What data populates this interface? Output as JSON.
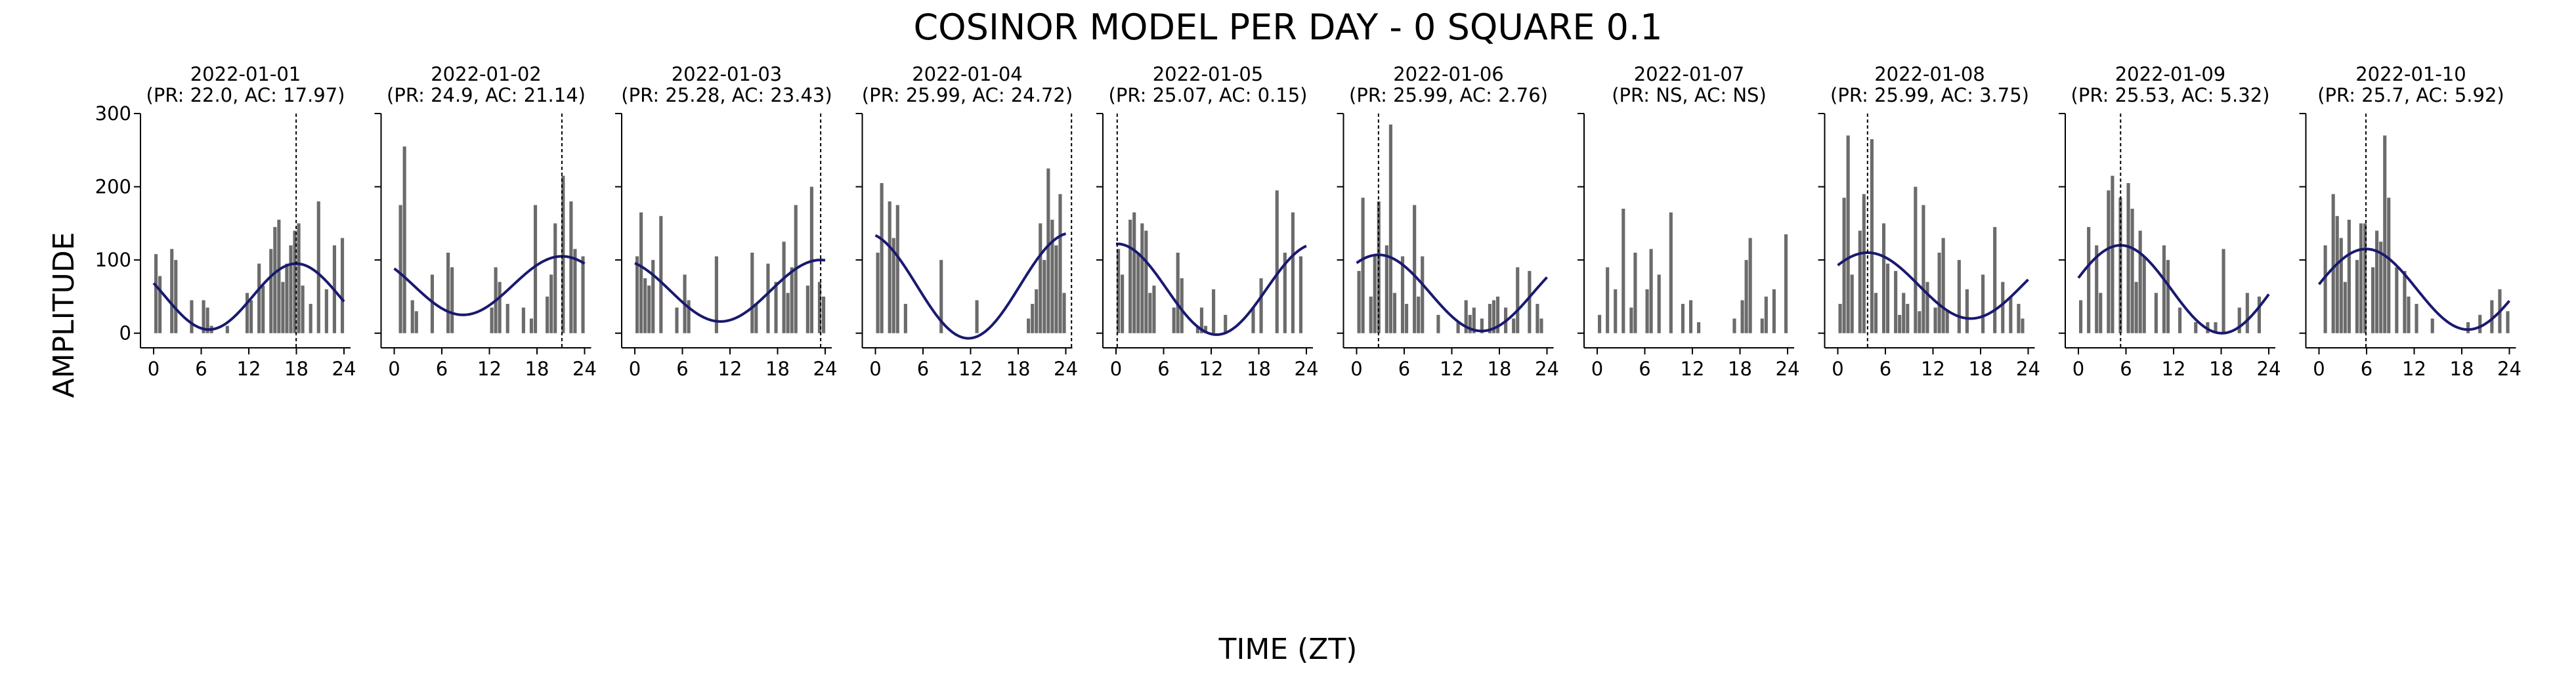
{
  "figure": {
    "title": "COSINOR MODEL PER DAY - 0 SQUARE 0.1",
    "xlabel": "TIME (ZT)",
    "ylabel": "AMPLITUDE"
  },
  "colors": {
    "bar": "#6b6b6b",
    "fit": "#191970",
    "axis": "#000000"
  },
  "chart_data": [
    {
      "type": "bar",
      "title": "2022-01-01\n(PR: 22.0, AC: 17.97)",
      "x": [
        0,
        0.5,
        1,
        1.5,
        2,
        2.5,
        3,
        3.5,
        4,
        4.5,
        5,
        5.5,
        6,
        6.5,
        7,
        7.5,
        8,
        8.5,
        9,
        9.5,
        10,
        10.5,
        11,
        11.5,
        12,
        12.5,
        13,
        13.5,
        14,
        14.5,
        15,
        15.5,
        16,
        16.5,
        17,
        17.5,
        18,
        18.5,
        19,
        19.5,
        20,
        20.5,
        21,
        21.5,
        22,
        22.5,
        23,
        23.5
      ],
      "values": [
        108,
        78,
        0,
        0,
        115,
        100,
        0,
        0,
        0,
        45,
        0,
        0,
        45,
        35,
        10,
        0,
        0,
        0,
        10,
        0,
        0,
        0,
        0,
        55,
        45,
        0,
        95,
        65,
        0,
        115,
        145,
        155,
        70,
        95,
        120,
        140,
        150,
        65,
        0,
        40,
        0,
        180,
        0,
        60,
        0,
        120,
        0,
        130
      ],
      "fit": {
        "mesor": 50,
        "amplitude": 45,
        "acrophase": 17.97,
        "period": 22.0
      },
      "marker": 17.97,
      "ylim": [
        -20,
        300
      ],
      "yticks": [
        0,
        100,
        200,
        300
      ],
      "xticks": [
        0,
        6,
        12,
        18,
        24
      ]
    },
    {
      "type": "bar",
      "title": "2022-01-02\n(PR: 24.9, AC: 21.14)",
      "x": [
        0,
        0.5,
        1,
        1.5,
        2,
        2.5,
        3,
        3.5,
        4,
        4.5,
        5,
        5.5,
        6,
        6.5,
        7,
        7.5,
        8,
        8.5,
        9,
        9.5,
        10,
        10.5,
        11,
        11.5,
        12,
        12.5,
        13,
        13.5,
        14,
        14.5,
        15,
        15.5,
        16,
        16.5,
        17,
        17.5,
        18,
        18.5,
        19,
        19.5,
        20,
        20.5,
        21,
        21.5,
        22,
        22.5,
        23,
        23.5
      ],
      "values": [
        0,
        175,
        255,
        0,
        45,
        30,
        0,
        0,
        0,
        80,
        0,
        0,
        0,
        110,
        90,
        0,
        0,
        0,
        0,
        0,
        0,
        0,
        0,
        0,
        35,
        90,
        70,
        0,
        40,
        0,
        0,
        0,
        35,
        0,
        20,
        175,
        0,
        0,
        50,
        80,
        150,
        0,
        215,
        0,
        180,
        115,
        0,
        105
      ],
      "fit": {
        "mesor": 65,
        "amplitude": 40,
        "acrophase": 21.14,
        "period": 24.9
      },
      "marker": 21.14,
      "ylim": [
        -20,
        300
      ],
      "yticks": [
        0,
        100,
        200,
        300
      ],
      "xticks": [
        0,
        6,
        12,
        18,
        24
      ]
    },
    {
      "type": "bar",
      "title": "2022-01-03\n(PR: 25.28, AC: 23.43)",
      "x": [
        0,
        0.5,
        1,
        1.5,
        2,
        2.5,
        3,
        3.5,
        4,
        4.5,
        5,
        5.5,
        6,
        6.5,
        7,
        7.5,
        8,
        8.5,
        9,
        9.5,
        10,
        10.5,
        11,
        11.5,
        12,
        12.5,
        13,
        13.5,
        14,
        14.5,
        15,
        15.5,
        16,
        16.5,
        17,
        17.5,
        18,
        18.5,
        19,
        19.5,
        20,
        20.5,
        21,
        21.5,
        22,
        22.5,
        23,
        23.5
      ],
      "values": [
        105,
        165,
        75,
        65,
        100,
        0,
        160,
        0,
        0,
        0,
        35,
        0,
        80,
        45,
        0,
        0,
        0,
        0,
        0,
        0,
        105,
        0,
        0,
        0,
        0,
        0,
        0,
        0,
        0,
        110,
        40,
        0,
        0,
        95,
        0,
        70,
        0,
        125,
        55,
        90,
        175,
        0,
        0,
        65,
        200,
        0,
        70,
        50
      ],
      "fit": {
        "mesor": 58,
        "amplitude": 42,
        "acrophase": 23.43,
        "period": 25.28
      },
      "marker": 23.43,
      "ylim": [
        -20,
        300
      ],
      "yticks": [
        0,
        100,
        200,
        300
      ],
      "xticks": [
        0,
        6,
        12,
        18,
        24
      ]
    },
    {
      "type": "bar",
      "title": "2022-01-04\n(PR: 25.99, AC: 24.72)",
      "x": [
        0,
        0.5,
        1,
        1.5,
        2,
        2.5,
        3,
        3.5,
        4,
        4.5,
        5,
        5.5,
        6,
        6.5,
        7,
        7.5,
        8,
        8.5,
        9,
        9.5,
        10,
        10.5,
        11,
        11.5,
        12,
        12.5,
        13,
        13.5,
        14,
        14.5,
        15,
        15.5,
        16,
        16.5,
        17,
        17.5,
        18,
        18.5,
        19,
        19.5,
        20,
        20.5,
        21,
        21.5,
        22,
        22.5,
        23,
        23.5
      ],
      "values": [
        110,
        205,
        0,
        180,
        130,
        175,
        0,
        40,
        0,
        0,
        0,
        0,
        0,
        0,
        0,
        0,
        100,
        0,
        0,
        0,
        0,
        0,
        0,
        0,
        0,
        45,
        0,
        0,
        0,
        0,
        0,
        0,
        0,
        0,
        0,
        0,
        0,
        0,
        20,
        40,
        60,
        150,
        100,
        225,
        155,
        120,
        190,
        55
      ],
      "fit": {
        "mesor": 65,
        "amplitude": 72,
        "acrophase": 24.72,
        "period": 25.99
      },
      "marker": 24.72,
      "ylim": [
        -20,
        300
      ],
      "yticks": [
        0,
        100,
        200,
        300
      ],
      "xticks": [
        0,
        6,
        12,
        18,
        24
      ]
    },
    {
      "type": "bar",
      "title": "2022-01-05\n(PR: 25.07, AC: 0.15)",
      "x": [
        0,
        0.5,
        1,
        1.5,
        2,
        2.5,
        3,
        3.5,
        4,
        4.5,
        5,
        5.5,
        6,
        6.5,
        7,
        7.5,
        8,
        8.5,
        9,
        9.5,
        10,
        10.5,
        11,
        11.5,
        12,
        12.5,
        13,
        13.5,
        14,
        14.5,
        15,
        15.5,
        16,
        16.5,
        17,
        17.5,
        18,
        18.5,
        19,
        19.5,
        20,
        20.5,
        21,
        21.5,
        22,
        22.5,
        23,
        23.5
      ],
      "values": [
        115,
        80,
        0,
        155,
        165,
        110,
        150,
        140,
        55,
        65,
        0,
        0,
        0,
        0,
        35,
        110,
        75,
        0,
        0,
        0,
        10,
        35,
        10,
        0,
        60,
        0,
        0,
        25,
        0,
        0,
        0,
        0,
        0,
        0,
        35,
        0,
        75,
        0,
        0,
        0,
        195,
        0,
        110,
        0,
        165,
        0,
        105,
        0
      ],
      "fit": {
        "mesor": 60,
        "amplitude": 62,
        "acrophase": 0.15,
        "period": 25.07
      },
      "marker": 0.15,
      "ylim": [
        -20,
        300
      ],
      "yticks": [
        0,
        100,
        200,
        300
      ],
      "xticks": [
        0,
        6,
        12,
        18,
        24
      ]
    },
    {
      "type": "bar",
      "title": "2022-01-06\n(PR: 25.99, AC: 2.76)",
      "x": [
        0,
        0.5,
        1,
        1.5,
        2,
        2.5,
        3,
        3.5,
        4,
        4.5,
        5,
        5.5,
        6,
        6.5,
        7,
        7.5,
        8,
        8.5,
        9,
        9.5,
        10,
        10.5,
        11,
        11.5,
        12,
        12.5,
        13,
        13.5,
        14,
        14.5,
        15,
        15.5,
        16,
        16.5,
        17,
        17.5,
        18,
        18.5,
        19,
        19.5,
        20,
        20.5,
        21,
        21.5,
        22,
        22.5,
        23,
        23.5
      ],
      "values": [
        85,
        185,
        0,
        50,
        105,
        180,
        0,
        120,
        285,
        55,
        0,
        105,
        40,
        0,
        175,
        50,
        105,
        0,
        0,
        0,
        25,
        0,
        0,
        0,
        0,
        15,
        0,
        45,
        25,
        35,
        0,
        20,
        0,
        40,
        45,
        50,
        0,
        35,
        0,
        20,
        90,
        0,
        0,
        85,
        0,
        40,
        20,
        0
      ],
      "fit": {
        "mesor": 55,
        "amplitude": 52,
        "acrophase": 2.76,
        "period": 25.99
      },
      "marker": 2.76,
      "ylim": [
        -20,
        300
      ],
      "yticks": [
        0,
        100,
        200,
        300
      ],
      "xticks": [
        0,
        6,
        12,
        18,
        24
      ]
    },
    {
      "type": "bar",
      "title": "2022-01-07\n(PR: NS, AC: NS)",
      "x": [
        0,
        0.5,
        1,
        1.5,
        2,
        2.5,
        3,
        3.5,
        4,
        4.5,
        5,
        5.5,
        6,
        6.5,
        7,
        7.5,
        8,
        8.5,
        9,
        9.5,
        10,
        10.5,
        11,
        11.5,
        12,
        12.5,
        13,
        13.5,
        14,
        14.5,
        15,
        15.5,
        16,
        16.5,
        17,
        17.5,
        18,
        18.5,
        19,
        19.5,
        20,
        20.5,
        21,
        21.5,
        22,
        22.5,
        23,
        23.5
      ],
      "values": [
        25,
        0,
        90,
        0,
        60,
        0,
        170,
        0,
        35,
        110,
        0,
        0,
        60,
        115,
        0,
        80,
        0,
        0,
        165,
        0,
        0,
        40,
        0,
        45,
        0,
        15,
        0,
        0,
        0,
        0,
        0,
        0,
        0,
        0,
        20,
        0,
        45,
        100,
        130,
        0,
        0,
        20,
        50,
        0,
        60,
        0,
        0,
        135
      ],
      "fit": null,
      "marker": null,
      "ylim": [
        -20,
        300
      ],
      "yticks": [
        0,
        100,
        200,
        300
      ],
      "xticks": [
        0,
        6,
        12,
        18,
        24
      ]
    },
    {
      "type": "bar",
      "title": "2022-01-08\n(PR: 25.99, AC: 3.75)",
      "x": [
        0,
        0.5,
        1,
        1.5,
        2,
        2.5,
        3,
        3.5,
        4,
        4.5,
        5,
        5.5,
        6,
        6.5,
        7,
        7.5,
        8,
        8.5,
        9,
        9.5,
        10,
        10.5,
        11,
        11.5,
        12,
        12.5,
        13,
        13.5,
        14,
        14.5,
        15,
        15.5,
        16,
        16.5,
        17,
        17.5,
        18,
        18.5,
        19,
        19.5,
        20,
        20.5,
        21,
        21.5,
        22,
        22.5,
        23,
        23.5
      ],
      "values": [
        40,
        185,
        270,
        80,
        0,
        140,
        190,
        0,
        265,
        55,
        0,
        150,
        95,
        0,
        85,
        25,
        55,
        40,
        0,
        200,
        30,
        175,
        70,
        0,
        35,
        110,
        130,
        30,
        0,
        0,
        100,
        0,
        60,
        0,
        0,
        0,
        80,
        0,
        0,
        145,
        0,
        70,
        0,
        50,
        0,
        40,
        20,
        0
      ],
      "fit": {
        "mesor": 65,
        "amplitude": 45,
        "acrophase": 3.75,
        "period": 25.99
      },
      "marker": 3.75,
      "ylim": [
        -20,
        300
      ],
      "yticks": [
        0,
        100,
        200,
        300
      ],
      "xticks": [
        0,
        6,
        12,
        18,
        24
      ]
    },
    {
      "type": "bar",
      "title": "2022-01-09\n(PR: 25.53, AC: 5.32)",
      "x": [
        0,
        0.5,
        1,
        1.5,
        2,
        2.5,
        3,
        3.5,
        4,
        4.5,
        5,
        5.5,
        6,
        6.5,
        7,
        7.5,
        8,
        8.5,
        9,
        9.5,
        10,
        10.5,
        11,
        11.5,
        12,
        12.5,
        13,
        13.5,
        14,
        14.5,
        15,
        15.5,
        16,
        16.5,
        17,
        17.5,
        18,
        18.5,
        19,
        19.5,
        20,
        20.5,
        21,
        21.5,
        22,
        22.5,
        23,
        23.5
      ],
      "values": [
        45,
        0,
        145,
        0,
        120,
        55,
        0,
        195,
        215,
        0,
        185,
        0,
        205,
        170,
        70,
        140,
        105,
        0,
        0,
        55,
        0,
        120,
        100,
        0,
        0,
        35,
        0,
        0,
        0,
        15,
        0,
        0,
        15,
        0,
        15,
        0,
        115,
        0,
        0,
        0,
        35,
        0,
        55,
        0,
        0,
        50,
        0,
        0
      ],
      "fit": {
        "mesor": 60,
        "amplitude": 60,
        "acrophase": 5.32,
        "period": 25.53
      },
      "marker": 5.32,
      "ylim": [
        -20,
        300
      ],
      "yticks": [
        0,
        100,
        200,
        300
      ],
      "xticks": [
        0,
        6,
        12,
        18,
        24
      ]
    },
    {
      "type": "bar",
      "title": "2022-01-10\n(PR: 25.7, AC: 5.92)",
      "x": [
        0,
        0.5,
        1,
        1.5,
        2,
        2.5,
        3,
        3.5,
        4,
        4.5,
        5,
        5.5,
        6,
        6.5,
        7,
        7.5,
        8,
        8.5,
        9,
        9.5,
        10,
        10.5,
        11,
        11.5,
        12,
        12.5,
        13,
        13.5,
        14,
        14.5,
        15,
        15.5,
        16,
        16.5,
        17,
        17.5,
        18,
        18.5,
        19,
        19.5,
        20,
        20.5,
        21,
        21.5,
        22,
        22.5,
        23,
        23.5
      ],
      "values": [
        0,
        120,
        0,
        190,
        160,
        130,
        70,
        155,
        0,
        100,
        150,
        150,
        0,
        90,
        140,
        125,
        270,
        185,
        0,
        90,
        0,
        85,
        50,
        0,
        40,
        0,
        0,
        0,
        20,
        0,
        0,
        0,
        0,
        0,
        0,
        0,
        0,
        15,
        0,
        0,
        25,
        0,
        0,
        45,
        0,
        60,
        0,
        30
      ],
      "fit": {
        "mesor": 60,
        "amplitude": 55,
        "acrophase": 5.92,
        "period": 25.7
      },
      "marker": 5.92,
      "ylim": [
        -20,
        300
      ],
      "yticks": [
        0,
        100,
        200,
        300
      ],
      "xticks": [
        0,
        6,
        12,
        18,
        24
      ]
    }
  ]
}
